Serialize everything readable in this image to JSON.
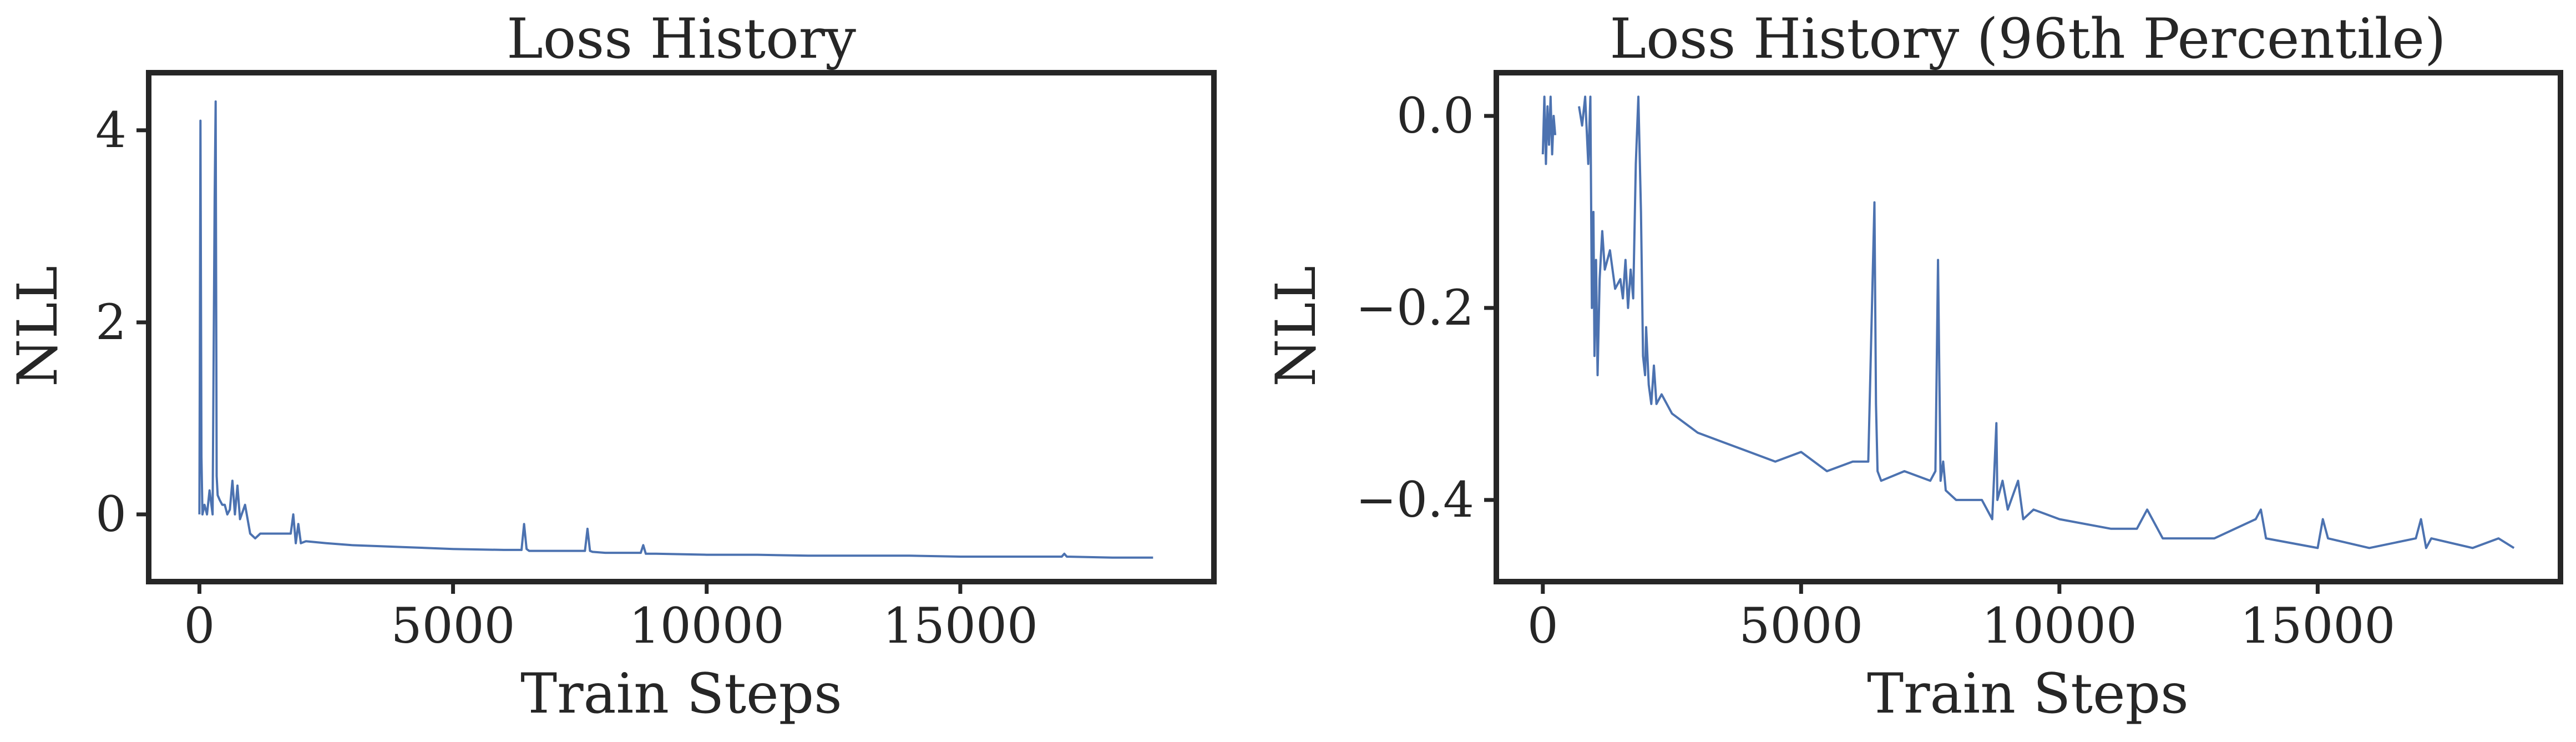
{
  "chart_data": [
    {
      "type": "line",
      "title": "Loss History",
      "xlabel": "Train Steps",
      "ylabel": "NLL",
      "xlim": [
        -1000,
        20000
      ],
      "ylim": [
        -0.7,
        4.6
      ],
      "xticks": [
        0,
        5000,
        10000,
        15000
      ],
      "xtick_labels": [
        "0",
        "5000",
        "10000",
        "15000"
      ],
      "yticks": [
        0,
        2,
        4
      ],
      "ytick_labels": [
        "0",
        "2",
        "4"
      ],
      "grid": false,
      "color": "#4c72b0",
      "series": [
        {
          "x": [
            0,
            20,
            40,
            60,
            100,
            150,
            200,
            260,
            300,
            320,
            340,
            360,
            400,
            450,
            500,
            550,
            600,
            650,
            700,
            750,
            800,
            900,
            1000,
            1100,
            1200,
            1500,
            1800,
            1850,
            1900,
            1950,
            2000,
            2100,
            2500,
            3000,
            3500,
            4000,
            5000,
            6000,
            6350,
            6400,
            6450,
            6500,
            7000,
            7600,
            7650,
            7700,
            7750,
            8000,
            8700,
            8750,
            8800,
            9000,
            10000,
            11000,
            12000,
            13000,
            14000,
            15000,
            16000,
            17000,
            17050,
            17100,
            18000,
            18800
          ],
          "y": [
            0.0,
            4.1,
            0.6,
            0.0,
            0.1,
            0.0,
            0.25,
            0.0,
            3.3,
            4.3,
            0.4,
            0.2,
            0.15,
            0.1,
            0.1,
            0.0,
            0.05,
            0.35,
            0.0,
            0.3,
            -0.05,
            0.1,
            -0.2,
            -0.25,
            -0.2,
            -0.2,
            -0.2,
            0.0,
            -0.3,
            -0.1,
            -0.3,
            -0.28,
            -0.3,
            -0.32,
            -0.33,
            -0.34,
            -0.36,
            -0.37,
            -0.37,
            -0.1,
            -0.36,
            -0.38,
            -0.38,
            -0.38,
            -0.15,
            -0.38,
            -0.39,
            -0.4,
            -0.4,
            -0.32,
            -0.41,
            -0.41,
            -0.42,
            -0.42,
            -0.43,
            -0.43,
            -0.43,
            -0.44,
            -0.44,
            -0.44,
            -0.41,
            -0.44,
            -0.45,
            -0.45
          ]
        }
      ]
    },
    {
      "type": "line",
      "title": "Loss History (96th Percentile)",
      "xlabel": "Train Steps",
      "ylabel": "NLL",
      "xlim": [
        -900,
        19700
      ],
      "ylim": [
        -0.485,
        0.045
      ],
      "xticks": [
        0,
        5000,
        10000,
        15000
      ],
      "xtick_labels": [
        "0",
        "5000",
        "10000",
        "15000"
      ],
      "yticks": [
        0.0,
        -0.2,
        -0.4
      ],
      "ytick_labels": [
        "0.0",
        "−0.2",
        "−0.4"
      ],
      "grid": false,
      "color": "#4c72b0",
      "series": [
        {
          "segments": [
            {
              "x": [
                0,
                30,
                60,
                90,
                120,
                150,
                180,
                210,
                240
              ],
              "y": [
                -0.04,
                0.02,
                -0.05,
                0.01,
                -0.03,
                0.02,
                -0.04,
                0.0,
                -0.02
              ]
            },
            {
              "x": [
                700,
                760,
                820,
                880,
                920,
                950,
                980,
                1000,
                1030,
                1060,
                1100,
                1150,
                1200,
                1300,
                1400,
                1500,
                1550,
                1600,
                1650,
                1700,
                1750,
                1800,
                1850,
                1900,
                1940,
                1980,
                2000,
                2050,
                2100,
                2150,
                2200,
                2300,
                2500,
                3000,
                3500,
                4000,
                4500,
                5000,
                5500,
                6000,
                6300,
                6420,
                6450,
                6480,
                6550,
                7000,
                7500,
                7600,
                7650,
                7700,
                7750,
                7800,
                8000,
                8500,
                8700,
                8780,
                8800,
                8900,
                9000,
                9200,
                9300,
                9500,
                10000,
                11000,
                11500,
                11700,
                12000,
                13000,
                13800,
                13900,
                14000,
                15000,
                15100,
                15200,
                16000,
                16900,
                17000,
                17100,
                17200,
                18000,
                18500,
                18800
              ],
              "y": [
                0.01,
                -0.01,
                0.02,
                -0.05,
                0.02,
                -0.2,
                -0.1,
                -0.25,
                -0.15,
                -0.27,
                -0.17,
                -0.12,
                -0.16,
                -0.14,
                -0.18,
                -0.17,
                -0.19,
                -0.15,
                -0.2,
                -0.16,
                -0.19,
                -0.05,
                0.02,
                -0.1,
                -0.25,
                -0.27,
                -0.22,
                -0.28,
                -0.3,
                -0.26,
                -0.3,
                -0.29,
                -0.31,
                -0.33,
                -0.34,
                -0.35,
                -0.36,
                -0.35,
                -0.37,
                -0.36,
                -0.36,
                -0.09,
                -0.3,
                -0.37,
                -0.38,
                -0.37,
                -0.38,
                -0.37,
                -0.15,
                -0.38,
                -0.36,
                -0.39,
                -0.4,
                -0.4,
                -0.42,
                -0.32,
                -0.4,
                -0.38,
                -0.41,
                -0.38,
                -0.42,
                -0.41,
                -0.42,
                -0.43,
                -0.43,
                -0.41,
                -0.44,
                -0.44,
                -0.42,
                -0.41,
                -0.44,
                -0.45,
                -0.42,
                -0.44,
                -0.45,
                -0.44,
                -0.42,
                -0.45,
                -0.44,
                -0.45,
                -0.44,
                -0.45
              ]
            }
          ]
        }
      ]
    }
  ]
}
